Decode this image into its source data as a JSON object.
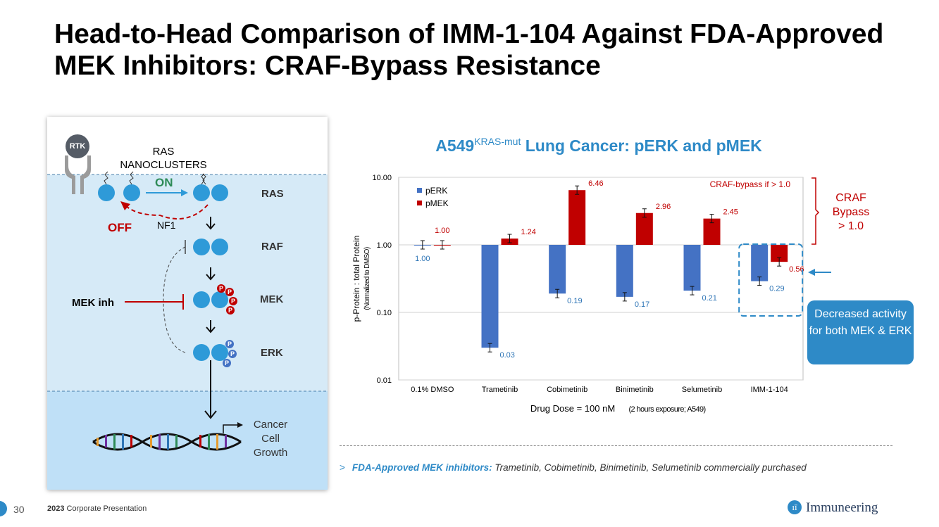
{
  "title": "Head-to-Head Comparison of IMM-1-104 Against FDA-Approved MEK Inhibitors: CRAF-Bypass Resistance",
  "pathway": {
    "rtk": "RTK",
    "ras_nanoclusters": "RAS\nNANOCLUSTERS",
    "on": "ON",
    "off": "OFF",
    "nf1": "NF1",
    "ras": "RAS",
    "raf": "RAF",
    "mek": "MEK",
    "erk": "ERK",
    "mek_inh": "MEK inh",
    "phospho": "P",
    "cancer_growth": "Cancer\nCell\nGrowth",
    "colors": {
      "protein": "#2e9ad8",
      "membrane_bg": "#d6eaf7",
      "nucleus_bg": "#bfe0f7",
      "red": "#c00000",
      "green": "#2e8b57"
    }
  },
  "chart_data": {
    "type": "bar",
    "title_main": "A549",
    "title_sup": "KRAS-mut",
    "title_rest": " Lung Cancer: pERK and pMEK",
    "categories": [
      "0.1% DMSO",
      "Trametinib",
      "Cobimetinib",
      "Binimetinib",
      "Selumetinib",
      "IMM-1-104"
    ],
    "series": [
      {
        "name": "pERK",
        "color": "#4472c4",
        "label_color": "#2e75b6",
        "values": [
          1.0,
          0.03,
          0.19,
          0.17,
          0.21,
          0.29
        ]
      },
      {
        "name": "pMEK",
        "color": "#c00000",
        "label_color": "#c00000",
        "values": [
          1.0,
          1.24,
          6.46,
          2.96,
          2.45,
          0.56
        ]
      }
    ],
    "ylabel": "p-Protein : total Protein",
    "ylabel2": "(Normalized to DMSO)",
    "xlabel": "Drug Dose = 100 nM",
    "xlabel_small": "(2 hours exposure; A549)",
    "yscale": "log",
    "baseline": 1.0,
    "ylim": [
      0.01,
      10.0
    ],
    "yticks": [
      "0.01",
      "0.10",
      "1.00",
      "10.00"
    ],
    "legend_position": "top-left",
    "grid": true,
    "annotation": "CRAF-bypass if > 1.0",
    "craf_bracket_label": "CRAF\nBypass\n> 1.0",
    "callout": "Decreased activity for both MEK & ERK"
  },
  "footnote": {
    "lead": "FDA-Approved MEK inhibitors:",
    "text": " Trametinib, Cobimetinib, Binimetinib, Selumetinib commercially purchased"
  },
  "footer": {
    "page_number": "30",
    "year": "2023",
    "presentation": " Corporate Presentation",
    "logo_mark": "ıī",
    "company": "Immuneering"
  }
}
